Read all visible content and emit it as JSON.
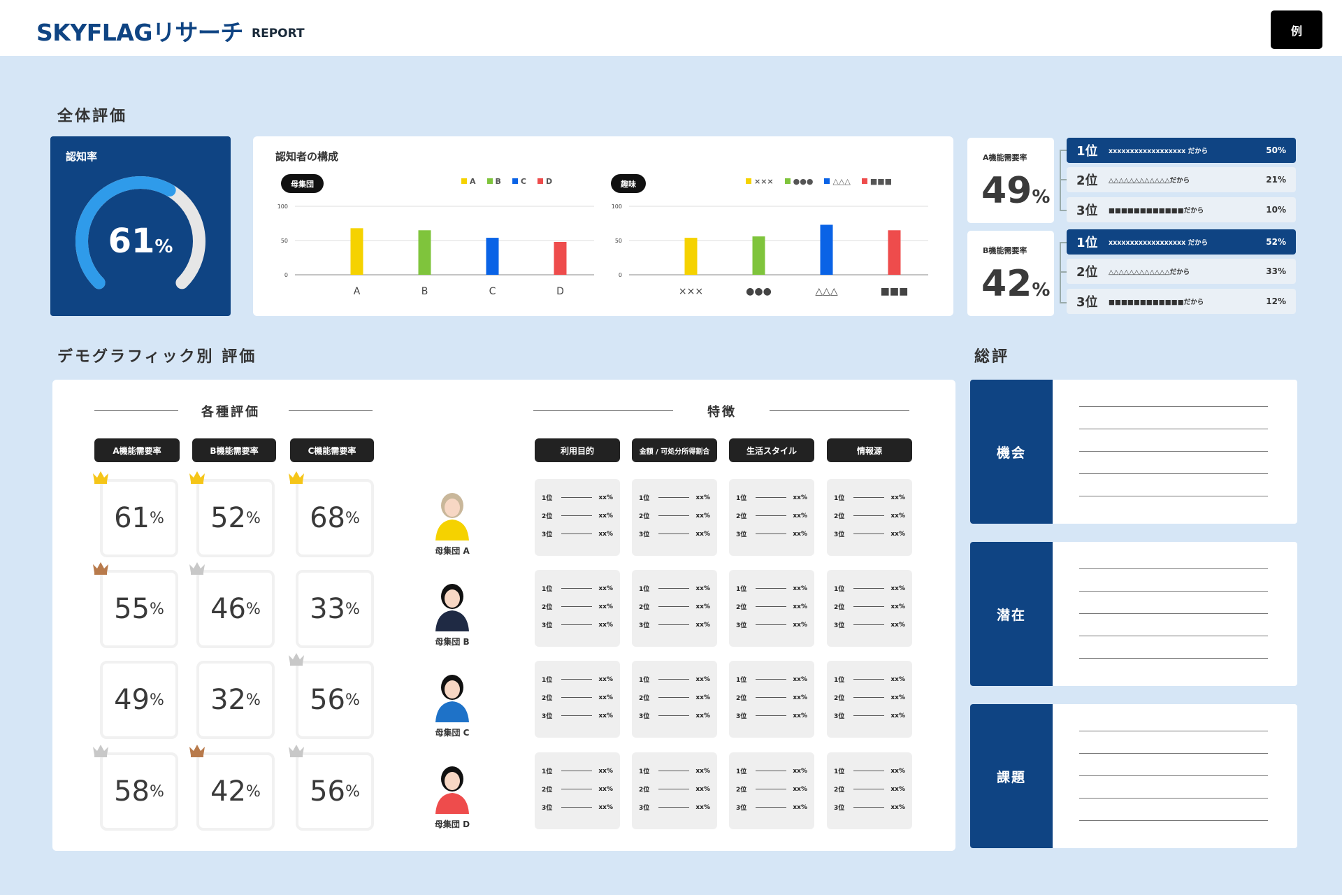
{
  "header": {
    "logo": "SKYFLAGリサーチ",
    "logo_sub": "REPORT",
    "example_button": "例"
  },
  "overall": {
    "title": "全体評価",
    "awareness": {
      "label": "認知率",
      "value": "61",
      "unit": "%",
      "fraction": 0.61
    },
    "composition": {
      "title": "認知者の構成"
    }
  },
  "chart_data": [
    {
      "type": "bar",
      "pill": "母集団",
      "legend": [
        "A",
        "B",
        "C",
        "D"
      ],
      "categories": [
        "A",
        "B",
        "C",
        "D"
      ],
      "values": [
        68,
        65,
        54,
        48
      ],
      "colors": [
        "#f5d200",
        "#7fc43c",
        "#0a63e6",
        "#ee4c4c"
      ],
      "ylim": [
        0,
        100
      ],
      "yticks": [
        "0",
        "50",
        "100"
      ]
    },
    {
      "type": "bar",
      "pill": "趣味",
      "legend": [
        "×××",
        "●●●",
        "△△△",
        "■■■"
      ],
      "categories": [
        "×××",
        "●●●",
        "△△△",
        "■■■"
      ],
      "values": [
        54,
        56,
        73,
        65
      ],
      "colors": [
        "#f5d200",
        "#7fc43c",
        "#0a63e6",
        "#ee4c4c"
      ],
      "ylim": [
        0,
        100
      ],
      "yticks": [
        "0",
        "50",
        "100"
      ]
    }
  ],
  "demand": [
    {
      "label": "A機能需要率",
      "value": "49",
      "unit": "%",
      "ranks": [
        {
          "pos": "1位",
          "text": "xxxxxxxxxxxxxxxxxx だから",
          "pct": "50%"
        },
        {
          "pos": "2位",
          "text": "△△△△△△△△△△△△だから",
          "pct": "21%"
        },
        {
          "pos": "3位",
          "text": "■■■■■■■■■■■■だから",
          "pct": "10%"
        }
      ]
    },
    {
      "label": "B機能需要率",
      "value": "42",
      "unit": "%",
      "ranks": [
        {
          "pos": "1位",
          "text": "xxxxxxxxxxxxxxxxxx だから",
          "pct": "52%"
        },
        {
          "pos": "2位",
          "text": "△△△△△△△△△△△△だから",
          "pct": "33%"
        },
        {
          "pos": "3位",
          "text": "■■■■■■■■■■■■だから",
          "pct": "12%"
        }
      ]
    }
  ],
  "demographic": {
    "title": "デモグラフィック別 評価",
    "ratings_title": "各種評価",
    "features_title": "特徴",
    "rating_headers": [
      "A機能需要率",
      "B機能需要率",
      "C機能需要率"
    ],
    "feature_headers": [
      "利用目的",
      "金額 / 可処分所得割合",
      "生活スタイル",
      "情報源"
    ],
    "rows": [
      {
        "persona": "母集団 A",
        "scores": [
          "61",
          "52",
          "68"
        ],
        "crowns": [
          "gold",
          "gold",
          "gold"
        ]
      },
      {
        "persona": "母集団 B",
        "scores": [
          "55",
          "46",
          "33"
        ],
        "crowns": [
          "bronze",
          "silver",
          ""
        ]
      },
      {
        "persona": "母集団 C",
        "scores": [
          "49",
          "32",
          "56"
        ],
        "crowns": [
          "",
          "",
          "silver"
        ]
      },
      {
        "persona": "母集団 D",
        "scores": [
          "58",
          "42",
          "56"
        ],
        "crowns": [
          "silver",
          "bronze",
          "silver"
        ]
      }
    ],
    "percent": "%",
    "feature_ranks": [
      "1位",
      "2位",
      "3位"
    ],
    "feature_value": "xx%"
  },
  "summary": {
    "title": "総評",
    "items": [
      "機会",
      "潜在",
      "課題"
    ]
  },
  "colors": {
    "navy": "#0f4483",
    "bg": "#d6e6f6",
    "gauge": "#2f9bea",
    "gold": "#f5c518",
    "silver": "#c8c8c8",
    "bronze": "#b87a4b"
  }
}
